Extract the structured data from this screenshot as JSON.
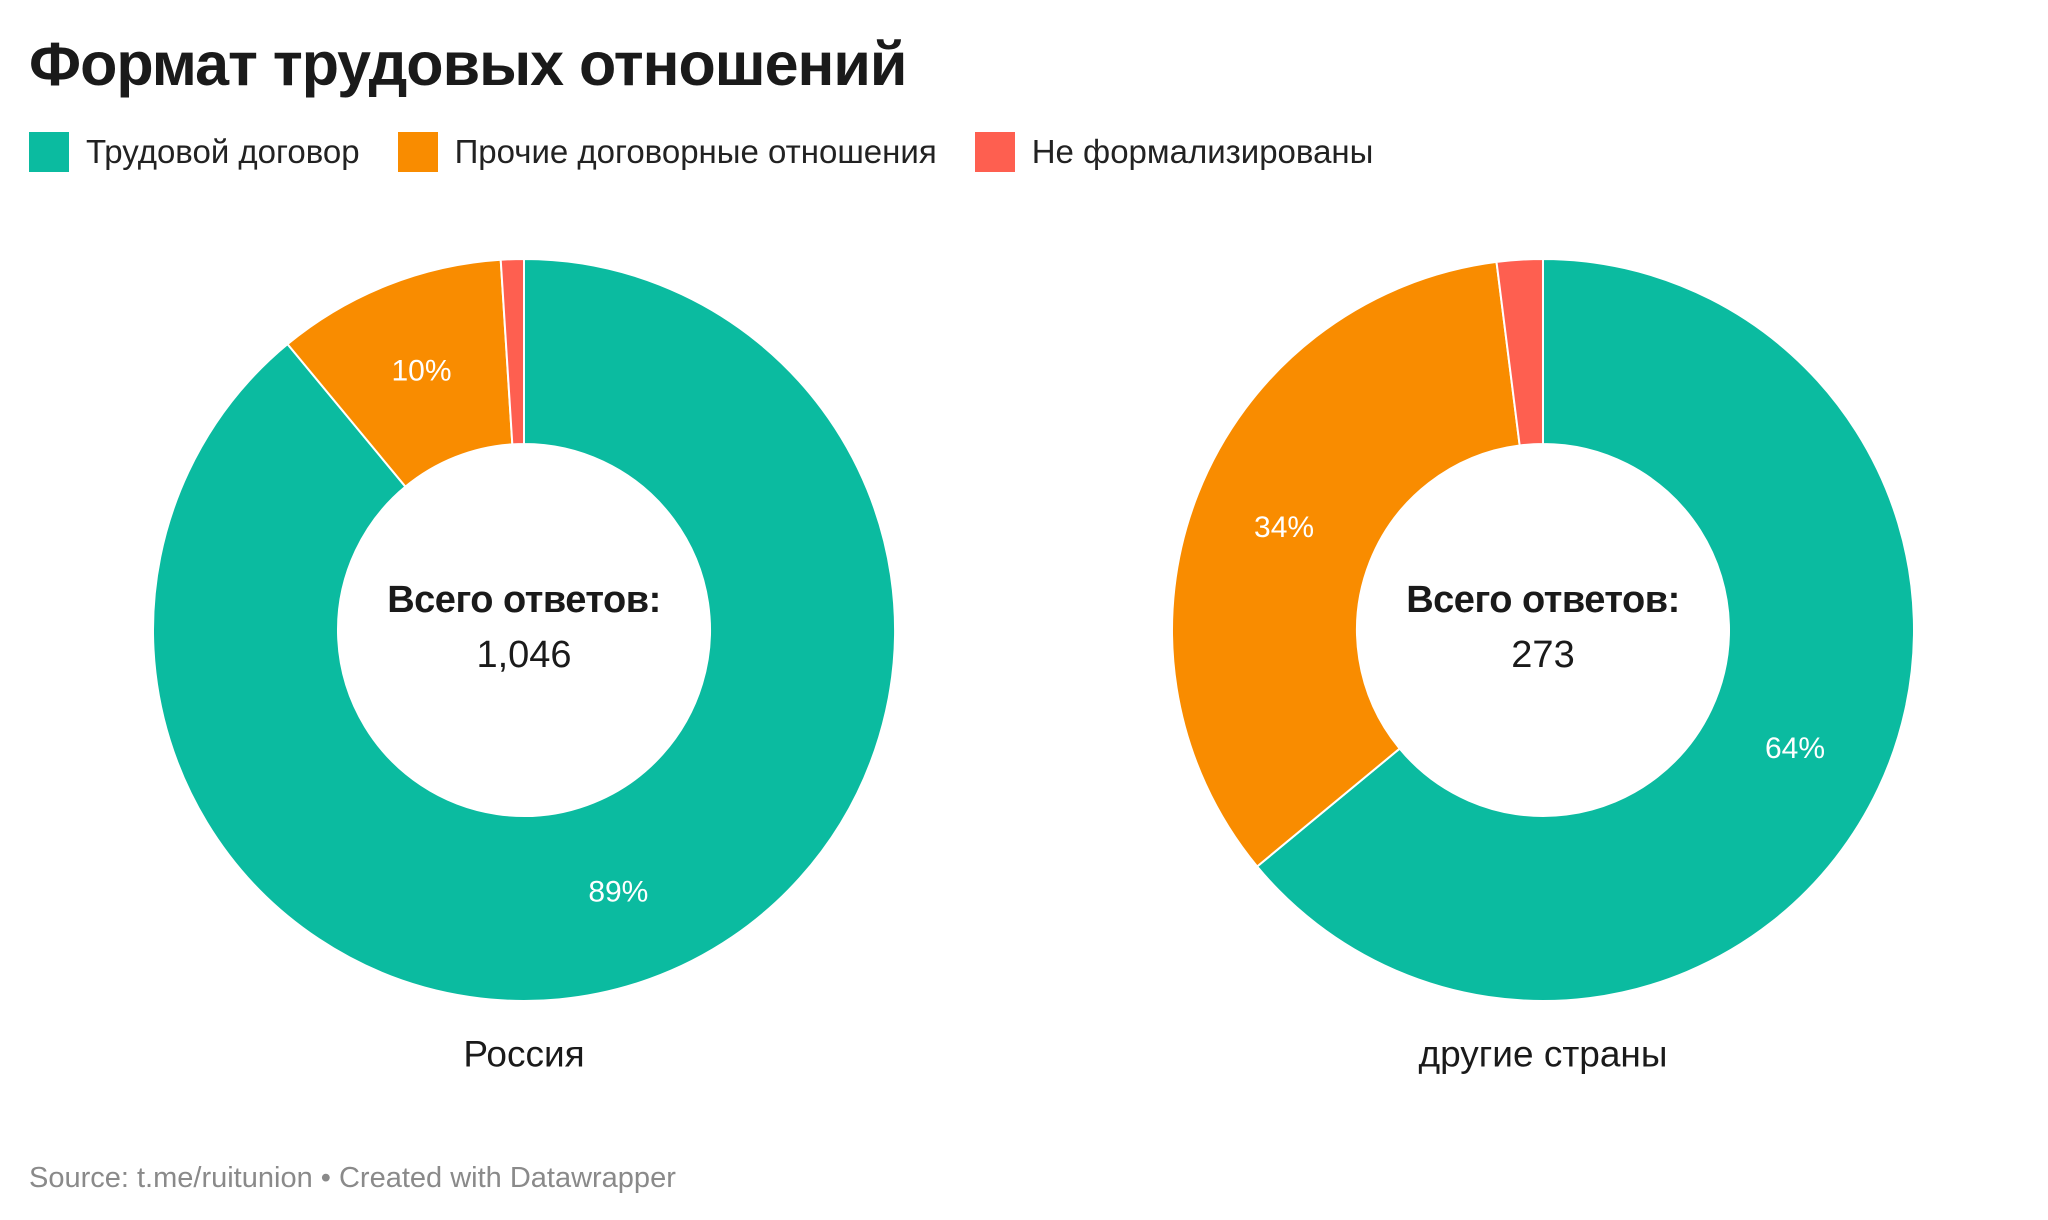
{
  "title": "Формат трудовых отношений",
  "legend": [
    {
      "label": "Трудовой договор",
      "color": "#0bbba0"
    },
    {
      "label": "Прочие договорные отношения",
      "color": "#f98c00"
    },
    {
      "label": "Не формализированы",
      "color": "#fe5f50"
    }
  ],
  "chart_data": [
    {
      "type": "pie",
      "label": "Россия",
      "center_title": "Всего ответов:",
      "center_value": "1,046",
      "slices": [
        {
          "category": "Трудовой договор",
          "value": 89,
          "label": "89%",
          "color": "#0bbba0"
        },
        {
          "category": "Прочие договорные отношения",
          "value": 10,
          "label": "10%",
          "color": "#f98c00"
        },
        {
          "category": "Не формализированы",
          "value": 1,
          "label": "",
          "color": "#fe5f50"
        }
      ]
    },
    {
      "type": "pie",
      "label": "другие страны",
      "center_title": "Всего ответов:",
      "center_value": "273",
      "slices": [
        {
          "category": "Трудовой договор",
          "value": 64,
          "label": "64%",
          "color": "#0bbba0"
        },
        {
          "category": "Прочие договорные отношения",
          "value": 34,
          "label": "34%",
          "color": "#f98c00"
        },
        {
          "category": "Не формализированы",
          "value": 2,
          "label": "",
          "color": "#fe5f50"
        }
      ]
    }
  ],
  "footer": {
    "source": "Source: t.me/ruitunion • Created with Datawrapper"
  }
}
